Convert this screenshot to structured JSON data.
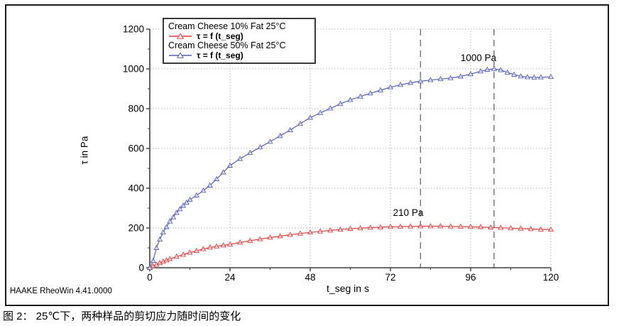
{
  "watermark": "HAAKE RheoWin 4.41.0000",
  "caption": "图 2：  25℃下，两种样品的剪切应力随时间的变化",
  "chart_data": {
    "type": "line",
    "title": "",
    "xlabel": "t_seg in s",
    "ylabel": "τ in Pa",
    "xlim": [
      0,
      120
    ],
    "ylim": [
      0,
      1200
    ],
    "xticks": [
      0,
      24,
      48,
      72,
      96,
      120
    ],
    "yticks": [
      0,
      200,
      400,
      600,
      800,
      1000,
      1200
    ],
    "x_minor_step": 12,
    "y_minor_step": 100,
    "grid": "dotted",
    "legend_position": "top-left",
    "axis_color": "#3d3d3d",
    "grid_color": "#b4b4b4",
    "vlines": {
      "style": "dashed",
      "color": "#787878",
      "values": [
        81,
        103
      ]
    },
    "annotations": [
      {
        "text": "1000 Pa",
        "t": 98,
        "pa": 1045
      },
      {
        "text": "210 Pa",
        "t": 77,
        "pa": 275
      }
    ],
    "series": [
      {
        "name": "Cream Cheese 10% Fat 25°C",
        "formula": "τ = f (t_seg)",
        "color": "#e03c3c",
        "marker": "triangle-open",
        "points": [
          [
            0,
            0
          ],
          [
            1,
            8
          ],
          [
            2,
            16
          ],
          [
            3,
            24
          ],
          [
            4,
            31
          ],
          [
            5,
            38
          ],
          [
            6,
            44
          ],
          [
            8,
            56
          ],
          [
            10,
            66
          ],
          [
            12,
            76
          ],
          [
            14,
            85
          ],
          [
            16,
            94
          ],
          [
            18,
            102
          ],
          [
            20,
            108
          ],
          [
            22,
            113
          ],
          [
            24,
            118
          ],
          [
            27,
            127
          ],
          [
            30,
            136
          ],
          [
            33,
            144
          ],
          [
            36,
            152
          ],
          [
            39,
            159
          ],
          [
            42,
            166
          ],
          [
            45,
            172
          ],
          [
            48,
            178
          ],
          [
            51,
            183
          ],
          [
            54,
            188
          ],
          [
            57,
            192
          ],
          [
            60,
            196
          ],
          [
            63,
            199
          ],
          [
            66,
            202
          ],
          [
            69,
            204
          ],
          [
            72,
            206
          ],
          [
            75,
            207
          ],
          [
            78,
            208
          ],
          [
            81,
            209
          ],
          [
            84,
            209
          ],
          [
            87,
            209
          ],
          [
            90,
            208
          ],
          [
            93,
            207
          ],
          [
            96,
            206
          ],
          [
            99,
            205
          ],
          [
            102,
            203
          ],
          [
            105,
            201
          ],
          [
            108,
            199
          ],
          [
            111,
            197
          ],
          [
            114,
            195
          ],
          [
            117,
            193
          ],
          [
            120,
            192
          ]
        ]
      },
      {
        "name": "Cream Cheese 50% Fat 25°C",
        "formula": "τ = f (t_seg)",
        "color": "#5560bb",
        "marker": "triangle-open",
        "points": [
          [
            0,
            0
          ],
          [
            1,
            35
          ],
          [
            2,
            100
          ],
          [
            3,
            143
          ],
          [
            4,
            178
          ],
          [
            5,
            205
          ],
          [
            6,
            233
          ],
          [
            7,
            254
          ],
          [
            8,
            276
          ],
          [
            9,
            295
          ],
          [
            10,
            312
          ],
          [
            11,
            328
          ],
          [
            12,
            342
          ],
          [
            14,
            364
          ],
          [
            16,
            388
          ],
          [
            18,
            414
          ],
          [
            20,
            446
          ],
          [
            22,
            480
          ],
          [
            24,
            514
          ],
          [
            27,
            548
          ],
          [
            30,
            578
          ],
          [
            33,
            606
          ],
          [
            36,
            634
          ],
          [
            39,
            663
          ],
          [
            42,
            692
          ],
          [
            45,
            724
          ],
          [
            48,
            755
          ],
          [
            51,
            779
          ],
          [
            54,
            801
          ],
          [
            57,
            824
          ],
          [
            60,
            844
          ],
          [
            63,
            861
          ],
          [
            66,
            877
          ],
          [
            69,
            893
          ],
          [
            72,
            908
          ],
          [
            75,
            920
          ],
          [
            78,
            930
          ],
          [
            81,
            938
          ],
          [
            84,
            944
          ],
          [
            87,
            949
          ],
          [
            90,
            954
          ],
          [
            93,
            962
          ],
          [
            96,
            974
          ],
          [
            99,
            988
          ],
          [
            101,
            996
          ],
          [
            103,
            1000
          ],
          [
            105,
            994
          ],
          [
            107,
            982
          ],
          [
            109,
            971
          ],
          [
            111,
            963
          ],
          [
            113,
            959
          ],
          [
            115,
            957
          ],
          [
            117,
            958
          ],
          [
            120,
            960
          ]
        ]
      }
    ]
  }
}
